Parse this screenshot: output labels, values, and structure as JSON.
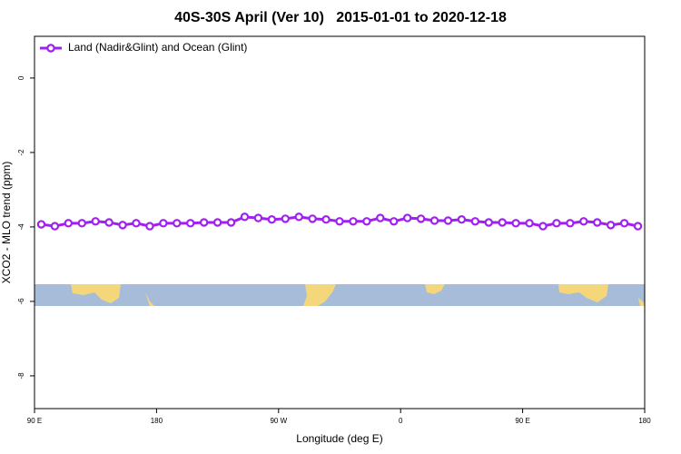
{
  "chart_data": {
    "type": "line",
    "title": "40S-30S April (Ver 10)   2015-01-01 to 2020-12-18",
    "x_label": "Longitude (deg E)",
    "y_label": "XCO2 - MLO trend (ppm)",
    "x": [
      95,
      105,
      115,
      125,
      135,
      145,
      155,
      165,
      175,
      185,
      195,
      205,
      215,
      225,
      235,
      245,
      255,
      265,
      275,
      285,
      295,
      305,
      315,
      325,
      335,
      345,
      355,
      365,
      375,
      385,
      395,
      405,
      415,
      425,
      435,
      445,
      455,
      465,
      475,
      485,
      495,
      505,
      515,
      525,
      535
    ],
    "series": [
      {
        "name": "Land (Nadir&Glint) and Ocean (Glint)",
        "color": "#a020f0",
        "values": [
          -3.93,
          -3.98,
          -3.9,
          -3.9,
          -3.85,
          -3.88,
          -3.95,
          -3.9,
          -3.98,
          -3.9,
          -3.9,
          -3.9,
          -3.88,
          -3.88,
          -3.88,
          -3.73,
          -3.76,
          -3.8,
          -3.78,
          -3.73,
          -3.78,
          -3.8,
          -3.85,
          -3.85,
          -3.85,
          -3.76,
          -3.85,
          -3.76,
          -3.78,
          -3.83,
          -3.83,
          -3.8,
          -3.85,
          -3.88,
          -3.88,
          -3.9,
          -3.9,
          -3.98,
          -3.9,
          -3.9,
          -3.85,
          -3.88,
          -3.95,
          -3.9,
          -3.98
        ]
      }
    ],
    "xlim": [
      90,
      540
    ],
    "xticks": [
      {
        "value": 90,
        "label": "90 E"
      },
      {
        "value": 180,
        "label": "180"
      },
      {
        "value": 270,
        "label": "90 W"
      },
      {
        "value": 360,
        "label": "0"
      },
      {
        "value": 450,
        "label": "90 E"
      },
      {
        "value": 540,
        "label": "180"
      }
    ],
    "ylim": [
      -8.88,
      1.12
    ],
    "yticks": [
      -8,
      -6,
      -4,
      -2,
      0
    ],
    "legend": "top-left"
  }
}
